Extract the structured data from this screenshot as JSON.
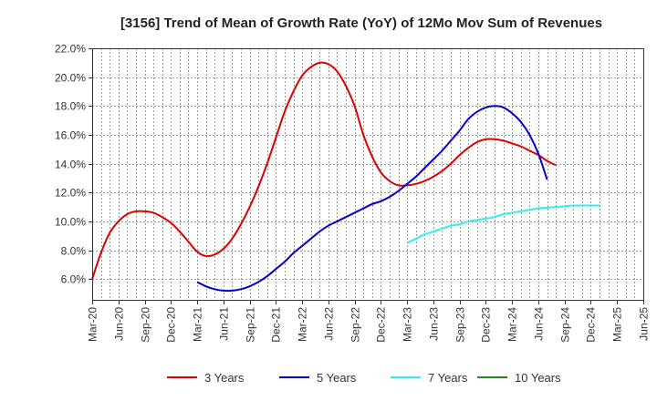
{
  "chart_data": {
    "type": "line",
    "title": "[3156]  Trend of Mean of Growth Rate (YoY) of 12Mo Mov Sum of Revenues",
    "xlabel": "",
    "ylabel": "",
    "ylim": [
      4.5,
      22.0
    ],
    "y_ticks": [
      6.0,
      8.0,
      10.0,
      12.0,
      14.0,
      16.0,
      18.0,
      20.0,
      22.0
    ],
    "y_tick_labels": [
      "6.0%",
      "8.0%",
      "10.0%",
      "12.0%",
      "14.0%",
      "16.0%",
      "18.0%",
      "20.0%",
      "22.0%"
    ],
    "x_start": "Mar-20",
    "x_tick_labels": [
      "Mar-20",
      "Jun-20",
      "Sep-20",
      "Dec-20",
      "Mar-21",
      "Jun-21",
      "Sep-21",
      "Dec-21",
      "Mar-22",
      "Jun-22",
      "Sep-22",
      "Dec-22",
      "Mar-23",
      "Jun-23",
      "Sep-23",
      "Dec-23",
      "Mar-24",
      "Jun-24",
      "Sep-24",
      "Dec-24",
      "Mar-25",
      "Jun-25"
    ],
    "grid": true,
    "legend_position": "bottom",
    "series": [
      {
        "name": "3 Years",
        "color": "#dd0000",
        "start_index": 0,
        "values": [
          6.0,
          7.8,
          9.2,
          10.0,
          10.5,
          10.7,
          10.7,
          10.6,
          10.3,
          9.9,
          9.3,
          8.6,
          7.9,
          7.6,
          7.7,
          8.1,
          8.8,
          9.8,
          11.0,
          12.4,
          14.0,
          15.8,
          17.6,
          19.0,
          20.1,
          20.7,
          21.0,
          20.9,
          20.4,
          19.4,
          18.0,
          16.0,
          14.5,
          13.4,
          12.8,
          12.5,
          12.5,
          12.6,
          12.8,
          13.1,
          13.5,
          14.0,
          14.6,
          15.1,
          15.5,
          15.7,
          15.7,
          15.6,
          15.4,
          15.2,
          14.9,
          14.6,
          14.2,
          13.9
        ]
      },
      {
        "name": "5 Years",
        "color": "#0000cc",
        "start_index": 12,
        "values": [
          5.8,
          5.5,
          5.3,
          5.2,
          5.2,
          5.3,
          5.5,
          5.8,
          6.2,
          6.7,
          7.2,
          7.8,
          8.3,
          8.8,
          9.3,
          9.7,
          10.0,
          10.3,
          10.6,
          10.9,
          11.2,
          11.4,
          11.7,
          12.1,
          12.6,
          13.1,
          13.7,
          14.3,
          14.9,
          15.6,
          16.3,
          17.1,
          17.6,
          17.9,
          18.0,
          17.9,
          17.5,
          16.9,
          16.0,
          14.7,
          12.9
        ]
      },
      {
        "name": "7 Years",
        "color": "#33eeee",
        "start_index": 36,
        "values": [
          8.5,
          8.8,
          9.1,
          9.3,
          9.5,
          9.7,
          9.8,
          10.0,
          10.1,
          10.2,
          10.3,
          10.5,
          10.6,
          10.7,
          10.8,
          10.9,
          10.95,
          11.0,
          11.05,
          11.1,
          11.1,
          11.1,
          11.1
        ]
      },
      {
        "name": "10 Years",
        "color": "#228822",
        "start_index": 0,
        "values": []
      }
    ]
  }
}
